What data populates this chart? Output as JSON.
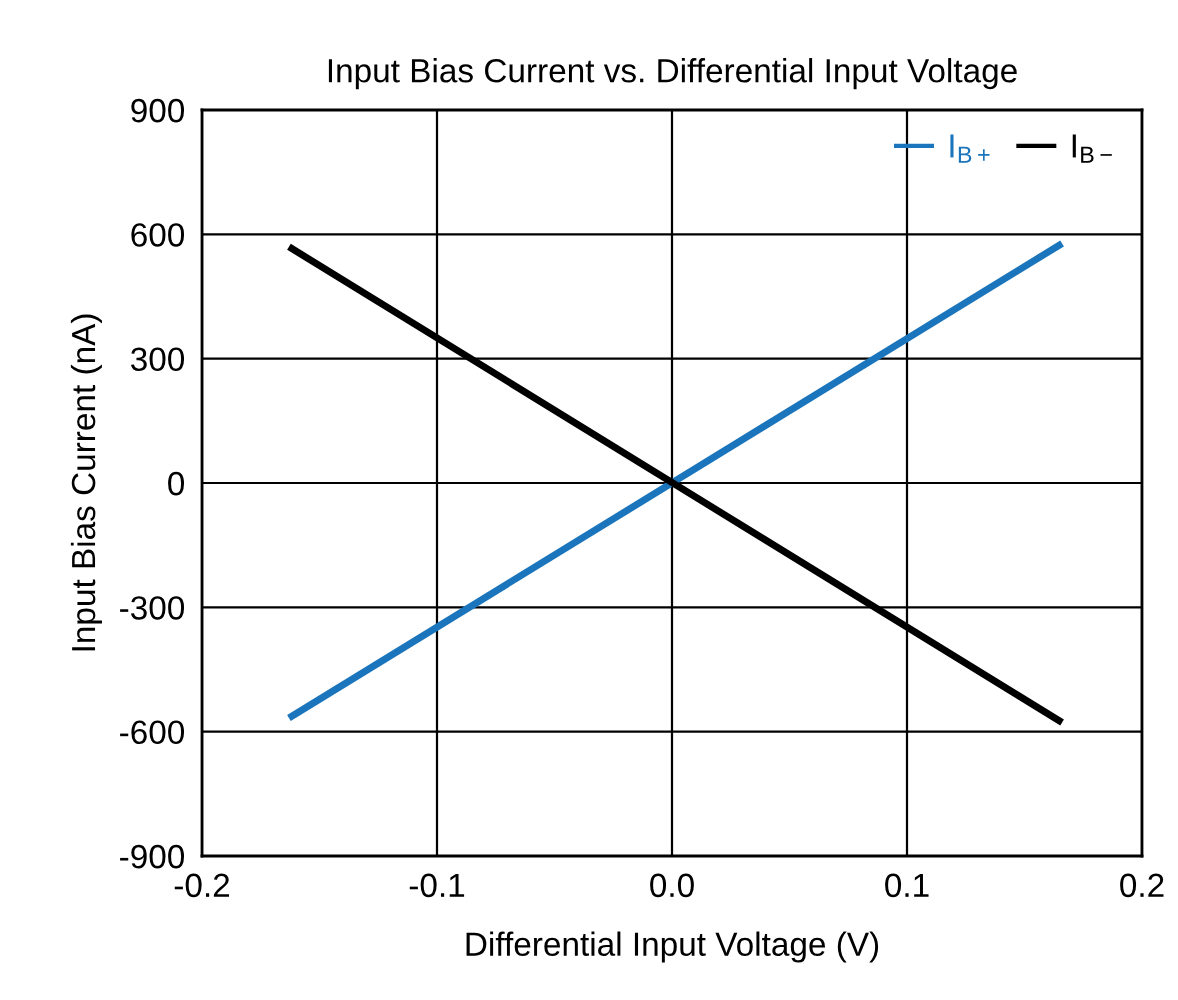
{
  "chart_data": {
    "type": "line",
    "title": "Input Bias Current vs. Differential Input Voltage",
    "xlabel": "Differential Input Voltage (V)",
    "ylabel": "Input Bias Current (nA)",
    "series": [
      {
        "name": "I$_{B+}$",
        "color": "#1a75bc",
        "values": [
          -567,
          578
        ]
      },
      {
        "name": "I$_{B−}$",
        "color": "#000000",
        "values": [
          570,
          -578
        ]
      }
    ],
    "x": [
      -0.163,
      0.166
    ],
    "xlim": [
      -0.2,
      0.2
    ],
    "xticks": [
      -0.2,
      -0.1,
      {
        "value": 0,
        "label": "0.0"
      },
      0.1,
      0.2
    ],
    "ylim": [
      -900,
      900
    ],
    "yticks": [
      -900,
      -600,
      -300,
      0,
      300,
      600,
      900
    ],
    "grid": true,
    "legend": "top right",
    "line_style": "solid",
    "marker": "none"
  }
}
